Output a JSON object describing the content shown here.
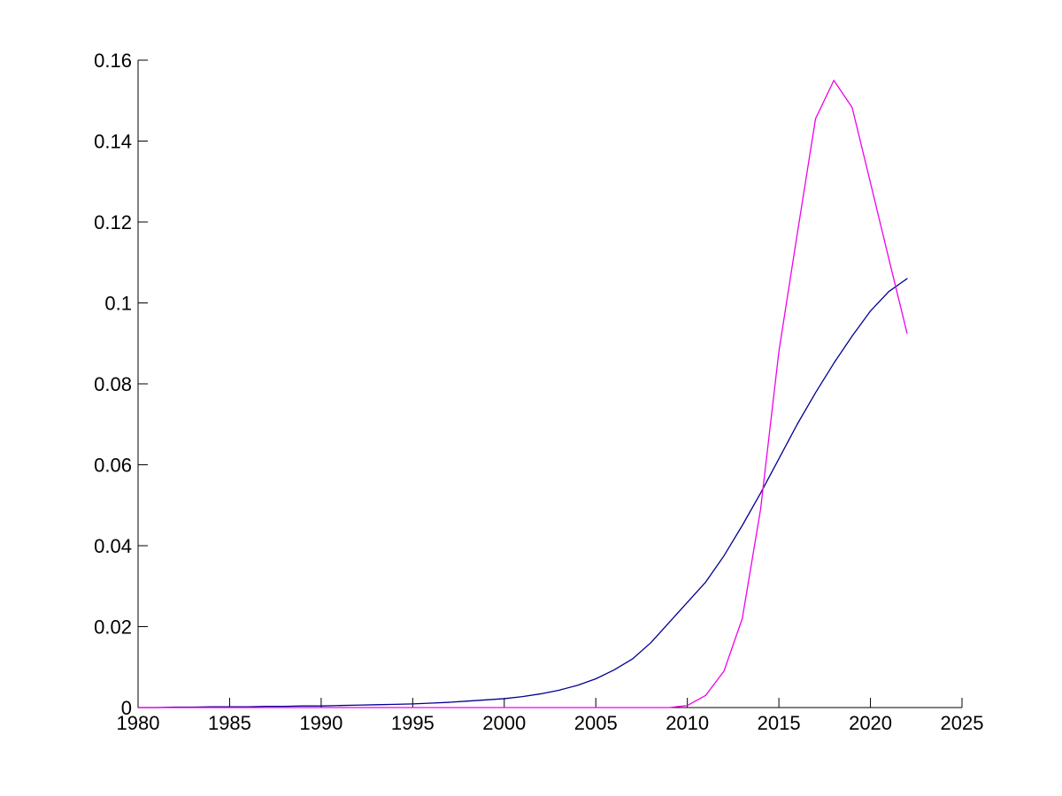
{
  "figure": {
    "background": "#ffffff",
    "title": ""
  },
  "chart_data": {
    "type": "line",
    "title": "",
    "xlabel": "",
    "ylabel": "",
    "xlim": [
      1980,
      2025
    ],
    "ylim": [
      0,
      0.16
    ],
    "grid": false,
    "legend": null,
    "background": "#ffffff",
    "axis_color": "#000000",
    "tick_style": "inward",
    "box": false,
    "x_ticks": [
      {
        "value": 1980,
        "label": "1980"
      },
      {
        "value": 1985,
        "label": "1985"
      },
      {
        "value": 1990,
        "label": "1990"
      },
      {
        "value": 1995,
        "label": "1995"
      },
      {
        "value": 2000,
        "label": "2000"
      },
      {
        "value": 2005,
        "label": "2005"
      },
      {
        "value": 2010,
        "label": "2010"
      },
      {
        "value": 2015,
        "label": "2015"
      },
      {
        "value": 2020,
        "label": "2020"
      },
      {
        "value": 2025,
        "label": "2025"
      }
    ],
    "y_ticks": [
      {
        "value": 0.0,
        "label": "0"
      },
      {
        "value": 0.02,
        "label": "0.02"
      },
      {
        "value": 0.04,
        "label": "0.04"
      },
      {
        "value": 0.06,
        "label": "0.06"
      },
      {
        "value": 0.08,
        "label": "0.08"
      },
      {
        "value": 0.1,
        "label": "0.1"
      },
      {
        "value": 0.12,
        "label": "0.12"
      },
      {
        "value": 0.14,
        "label": "0.14"
      },
      {
        "value": 0.16,
        "label": "0.16"
      }
    ],
    "x": [
      1980,
      1981,
      1982,
      1983,
      1984,
      1985,
      1986,
      1987,
      1988,
      1989,
      1990,
      1991,
      1992,
      1993,
      1994,
      1995,
      1996,
      1997,
      1998,
      1999,
      2000,
      2001,
      2002,
      2003,
      2004,
      2005,
      2006,
      2007,
      2008,
      2009,
      2010,
      2011,
      2012,
      2013,
      2014,
      2015,
      2016,
      2017,
      2018,
      2019,
      2020,
      2021,
      2022
    ],
    "series": [
      {
        "id": "navy",
        "color": "#000090",
        "line_width": 1.3,
        "values": [
          0.0,
          0.0,
          0.0001,
          0.0001,
          0.0002,
          0.0002,
          0.0002,
          0.0003,
          0.0003,
          0.0004,
          0.0004,
          0.0005,
          0.0006,
          0.0007,
          0.0008,
          0.0009,
          0.0011,
          0.0013,
          0.0016,
          0.0019,
          0.0022,
          0.0027,
          0.0034,
          0.0043,
          0.0055,
          0.0071,
          0.0093,
          0.012,
          0.016,
          0.021,
          0.026,
          0.031,
          0.0375,
          0.045,
          0.053,
          0.0615,
          0.07,
          0.0778,
          0.0851,
          0.0918,
          0.098,
          0.1028,
          0.106
        ]
      },
      {
        "id": "magenta",
        "color": "#EE00EE",
        "line_width": 1.3,
        "values": [
          0.0,
          0.0,
          0.0,
          0.0,
          0.0,
          0.0,
          0.0,
          0.0,
          0.0,
          0.0,
          0.0,
          0.0,
          0.0,
          0.0,
          0.0,
          0.0,
          0.0,
          0.0,
          0.0,
          0.0,
          0.0,
          0.0,
          0.0,
          0.0,
          0.0,
          0.0,
          0.0,
          0.0,
          0.0,
          0.0,
          0.0005,
          0.003,
          0.009,
          0.022,
          0.049,
          0.088,
          0.117,
          0.1455,
          0.155,
          0.1483,
          0.1297,
          0.111,
          0.0925
        ]
      }
    ]
  }
}
